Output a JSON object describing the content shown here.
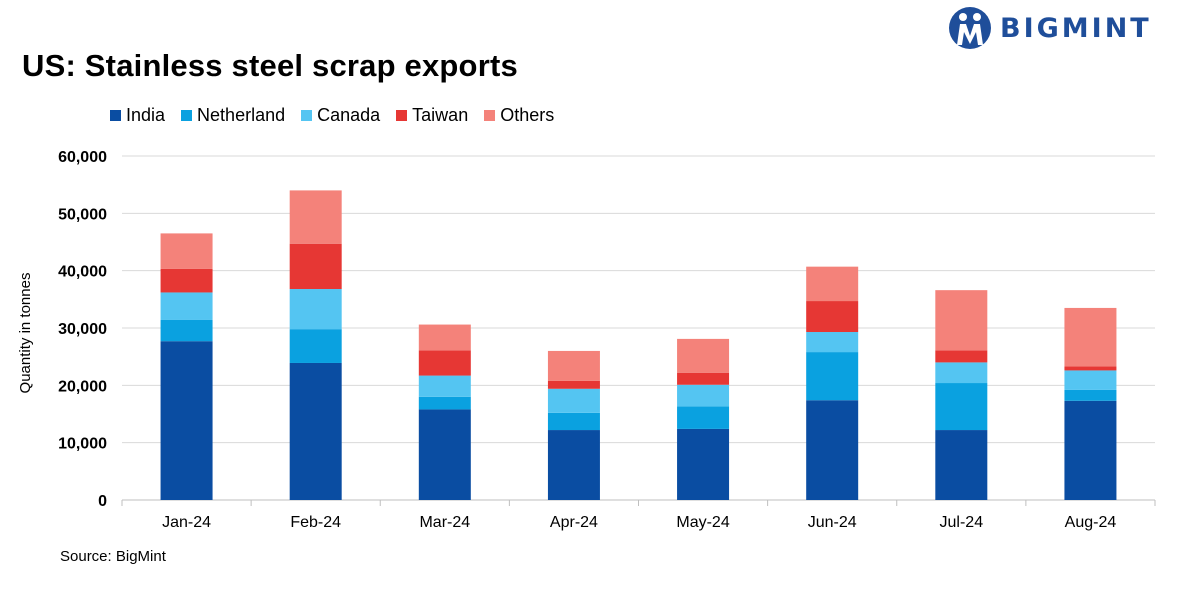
{
  "title": "US: Stainless steel scrap exports",
  "source": "Source: BigMint",
  "logo": {
    "text": "BIGMINT",
    "color": "#1f4e9a"
  },
  "chart_data": {
    "type": "bar",
    "stacked": true,
    "title": "US: Stainless steel scrap exports",
    "xlabel": "",
    "ylabel": "Quantity in tonnes",
    "ylim": [
      0,
      60000
    ],
    "yticks": [
      0,
      10000,
      20000,
      30000,
      40000,
      50000,
      60000
    ],
    "ytick_labels": [
      "0",
      "10,000",
      "20,000",
      "30,000",
      "40,000",
      "50,000",
      "60,000"
    ],
    "grid": true,
    "legend_position": "top-left",
    "categories": [
      "Jan-24",
      "Feb-24",
      "Mar-24",
      "Apr-24",
      "May-24",
      "Jun-24",
      "Jul-24",
      "Aug-24"
    ],
    "series": [
      {
        "name": "India",
        "color": "#0a4da2",
        "values": [
          27700,
          23900,
          15800,
          12200,
          12400,
          17400,
          12200,
          17300
        ]
      },
      {
        "name": "Netherland",
        "color": "#0aa1e0",
        "values": [
          3700,
          5900,
          2200,
          3000,
          3900,
          8400,
          8200,
          1900
        ]
      },
      {
        "name": "Canada",
        "color": "#54c5f2",
        "values": [
          4800,
          7000,
          3700,
          4200,
          3800,
          3500,
          3600,
          3400
        ]
      },
      {
        "name": "Taiwan",
        "color": "#e63734",
        "values": [
          4100,
          7900,
          4400,
          1400,
          2100,
          5400,
          2100,
          700
        ]
      },
      {
        "name": "Others",
        "color": "#f4827a",
        "values": [
          6200,
          9300,
          4500,
          5200,
          5900,
          6000,
          10500,
          10200
        ]
      }
    ]
  }
}
